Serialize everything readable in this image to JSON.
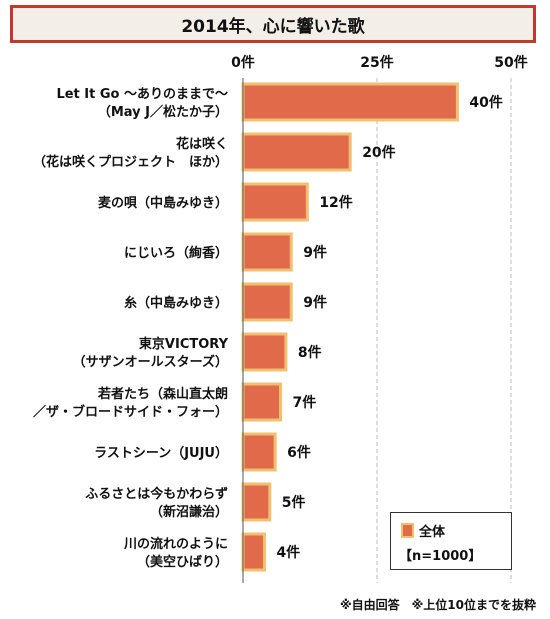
{
  "chart_data": {
    "type": "bar",
    "orientation": "horizontal",
    "title": "2014年、心に響いた歌",
    "categories": [
      [
        "Let It Go ～ありのままで～",
        "（May J／松たか子）"
      ],
      [
        "花は咲く",
        "（花は咲くプロジェクト　ほか）"
      ],
      [
        "麦の唄（中島みゆき）"
      ],
      [
        "にじいろ（絢香）"
      ],
      [
        "糸（中島みゆき）"
      ],
      [
        "東京VICTORY",
        "（サザンオールスターズ）"
      ],
      [
        "若者たち（森山直太朗",
        "／ザ・ブロードサイド・フォー）"
      ],
      [
        "ラストシーン（JUJU）"
      ],
      [
        "ふるさとは今もかわらず",
        "（新沼謙治）"
      ],
      [
        "川の流れのように",
        "（美空ひばり）"
      ]
    ],
    "values": [
      40,
      20,
      12,
      9,
      9,
      8,
      7,
      6,
      5,
      4
    ],
    "value_labels": [
      "40件",
      "20件",
      "12件",
      "9件",
      "9件",
      "8件",
      "7件",
      "6件",
      "5件",
      "4件"
    ],
    "xlim": [
      0,
      50
    ],
    "x_ticks": [
      "0件",
      "25件",
      "50件"
    ],
    "bar_color": "#e06a4a",
    "bar_border_color": "#f0c070",
    "legend": {
      "series_name": "全体",
      "sample": "【n=1000】",
      "placement": "bottom-right"
    },
    "footnote": "※自由回答　※上位10位までを抜粋"
  }
}
